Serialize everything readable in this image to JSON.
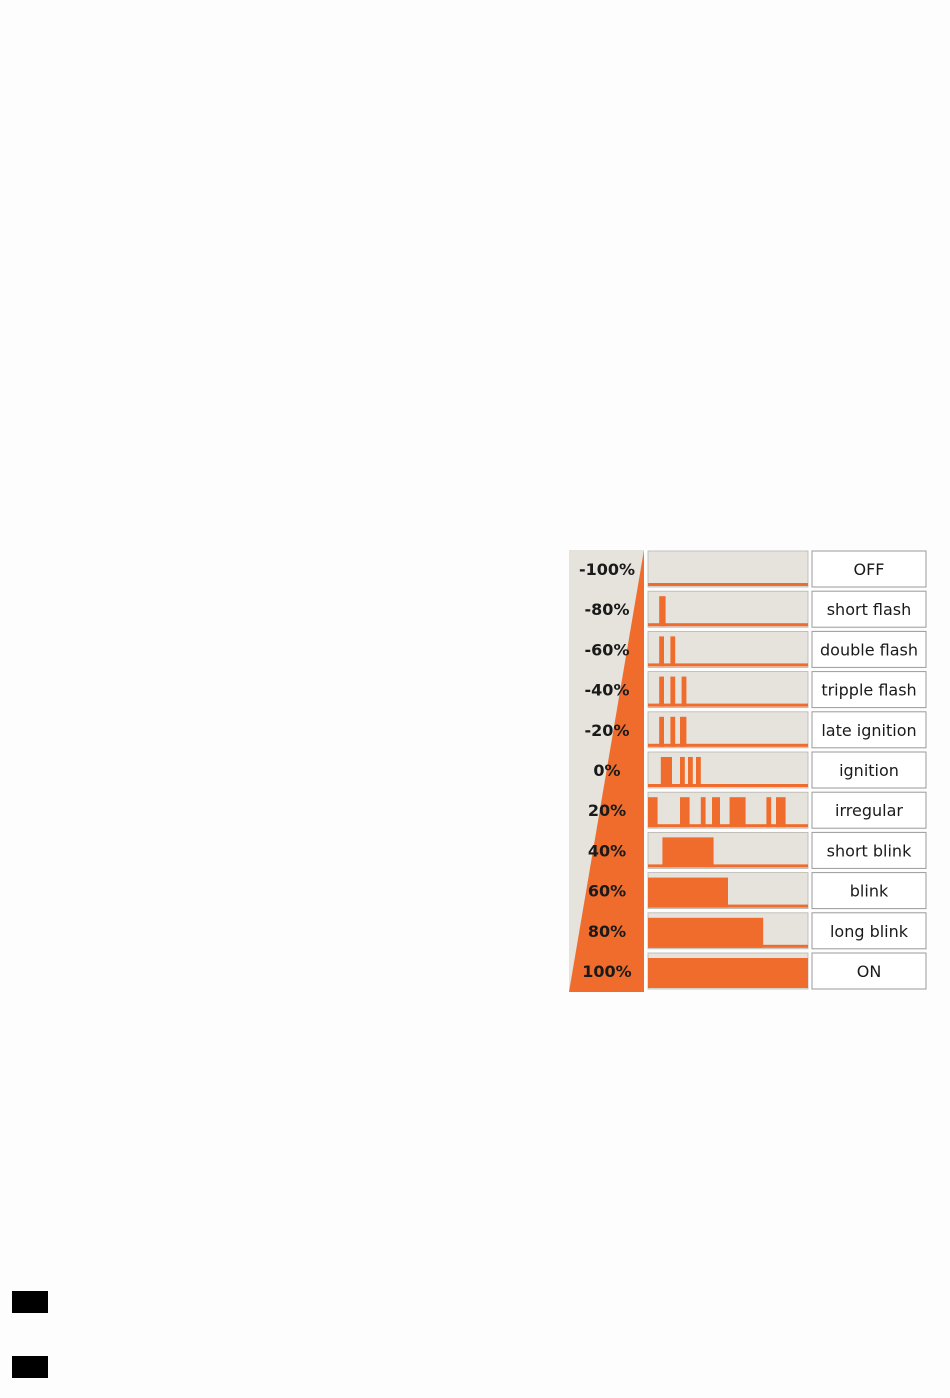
{
  "colors": {
    "accent": "#ef6c2c",
    "panel_bg": "#e6e2dc",
    "box_border": "#9a9a9a",
    "text": "#1a1a1a"
  },
  "rows": [
    {
      "percent": "-100%",
      "mode": "OFF",
      "pulses": [],
      "baseline": true
    },
    {
      "percent": "-80%",
      "mode": "short flash",
      "pulses": [
        [
          0.07,
          0.11
        ]
      ],
      "baseline": true
    },
    {
      "percent": "-60%",
      "mode": "double flash",
      "pulses": [
        [
          0.07,
          0.1
        ],
        [
          0.14,
          0.17
        ]
      ],
      "baseline": true
    },
    {
      "percent": "-40%",
      "mode": "tripple flash",
      "pulses": [
        [
          0.07,
          0.1
        ],
        [
          0.14,
          0.17
        ],
        [
          0.21,
          0.24
        ]
      ],
      "baseline": true
    },
    {
      "percent": "-20%",
      "mode": "late ignition",
      "pulses": [
        [
          0.07,
          0.1
        ],
        [
          0.14,
          0.17
        ],
        [
          0.2,
          0.24
        ]
      ],
      "baseline": true
    },
    {
      "percent": "0%",
      "mode": "ignition",
      "pulses": [
        [
          0.08,
          0.15
        ],
        [
          0.2,
          0.23
        ],
        [
          0.25,
          0.28
        ],
        [
          0.3,
          0.33
        ]
      ],
      "baseline": true
    },
    {
      "percent": "20%",
      "mode": "irregular",
      "pulses": [
        [
          0.0,
          0.06
        ],
        [
          0.2,
          0.26
        ],
        [
          0.33,
          0.36
        ],
        [
          0.4,
          0.45
        ],
        [
          0.51,
          0.61
        ],
        [
          0.74,
          0.77
        ],
        [
          0.8,
          0.86
        ]
      ],
      "baseline": true
    },
    {
      "percent": "40%",
      "mode": "short blink",
      "pulses": [
        [
          0.09,
          0.41
        ]
      ],
      "baseline": true
    },
    {
      "percent": "60%",
      "mode": "blink",
      "pulses": [
        [
          0.0,
          0.5
        ]
      ],
      "baseline": true
    },
    {
      "percent": "80%",
      "mode": "long blink",
      "pulses": [
        [
          0.0,
          0.72
        ]
      ],
      "baseline": true
    },
    {
      "percent": "100%",
      "mode": "ON",
      "pulses": [
        [
          0.0,
          1.0
        ]
      ],
      "baseline": true
    }
  ],
  "icons": {
    "ramp": "triangle-ramp-icon",
    "marks": [
      "black-square-icon",
      "black-square-icon"
    ]
  }
}
